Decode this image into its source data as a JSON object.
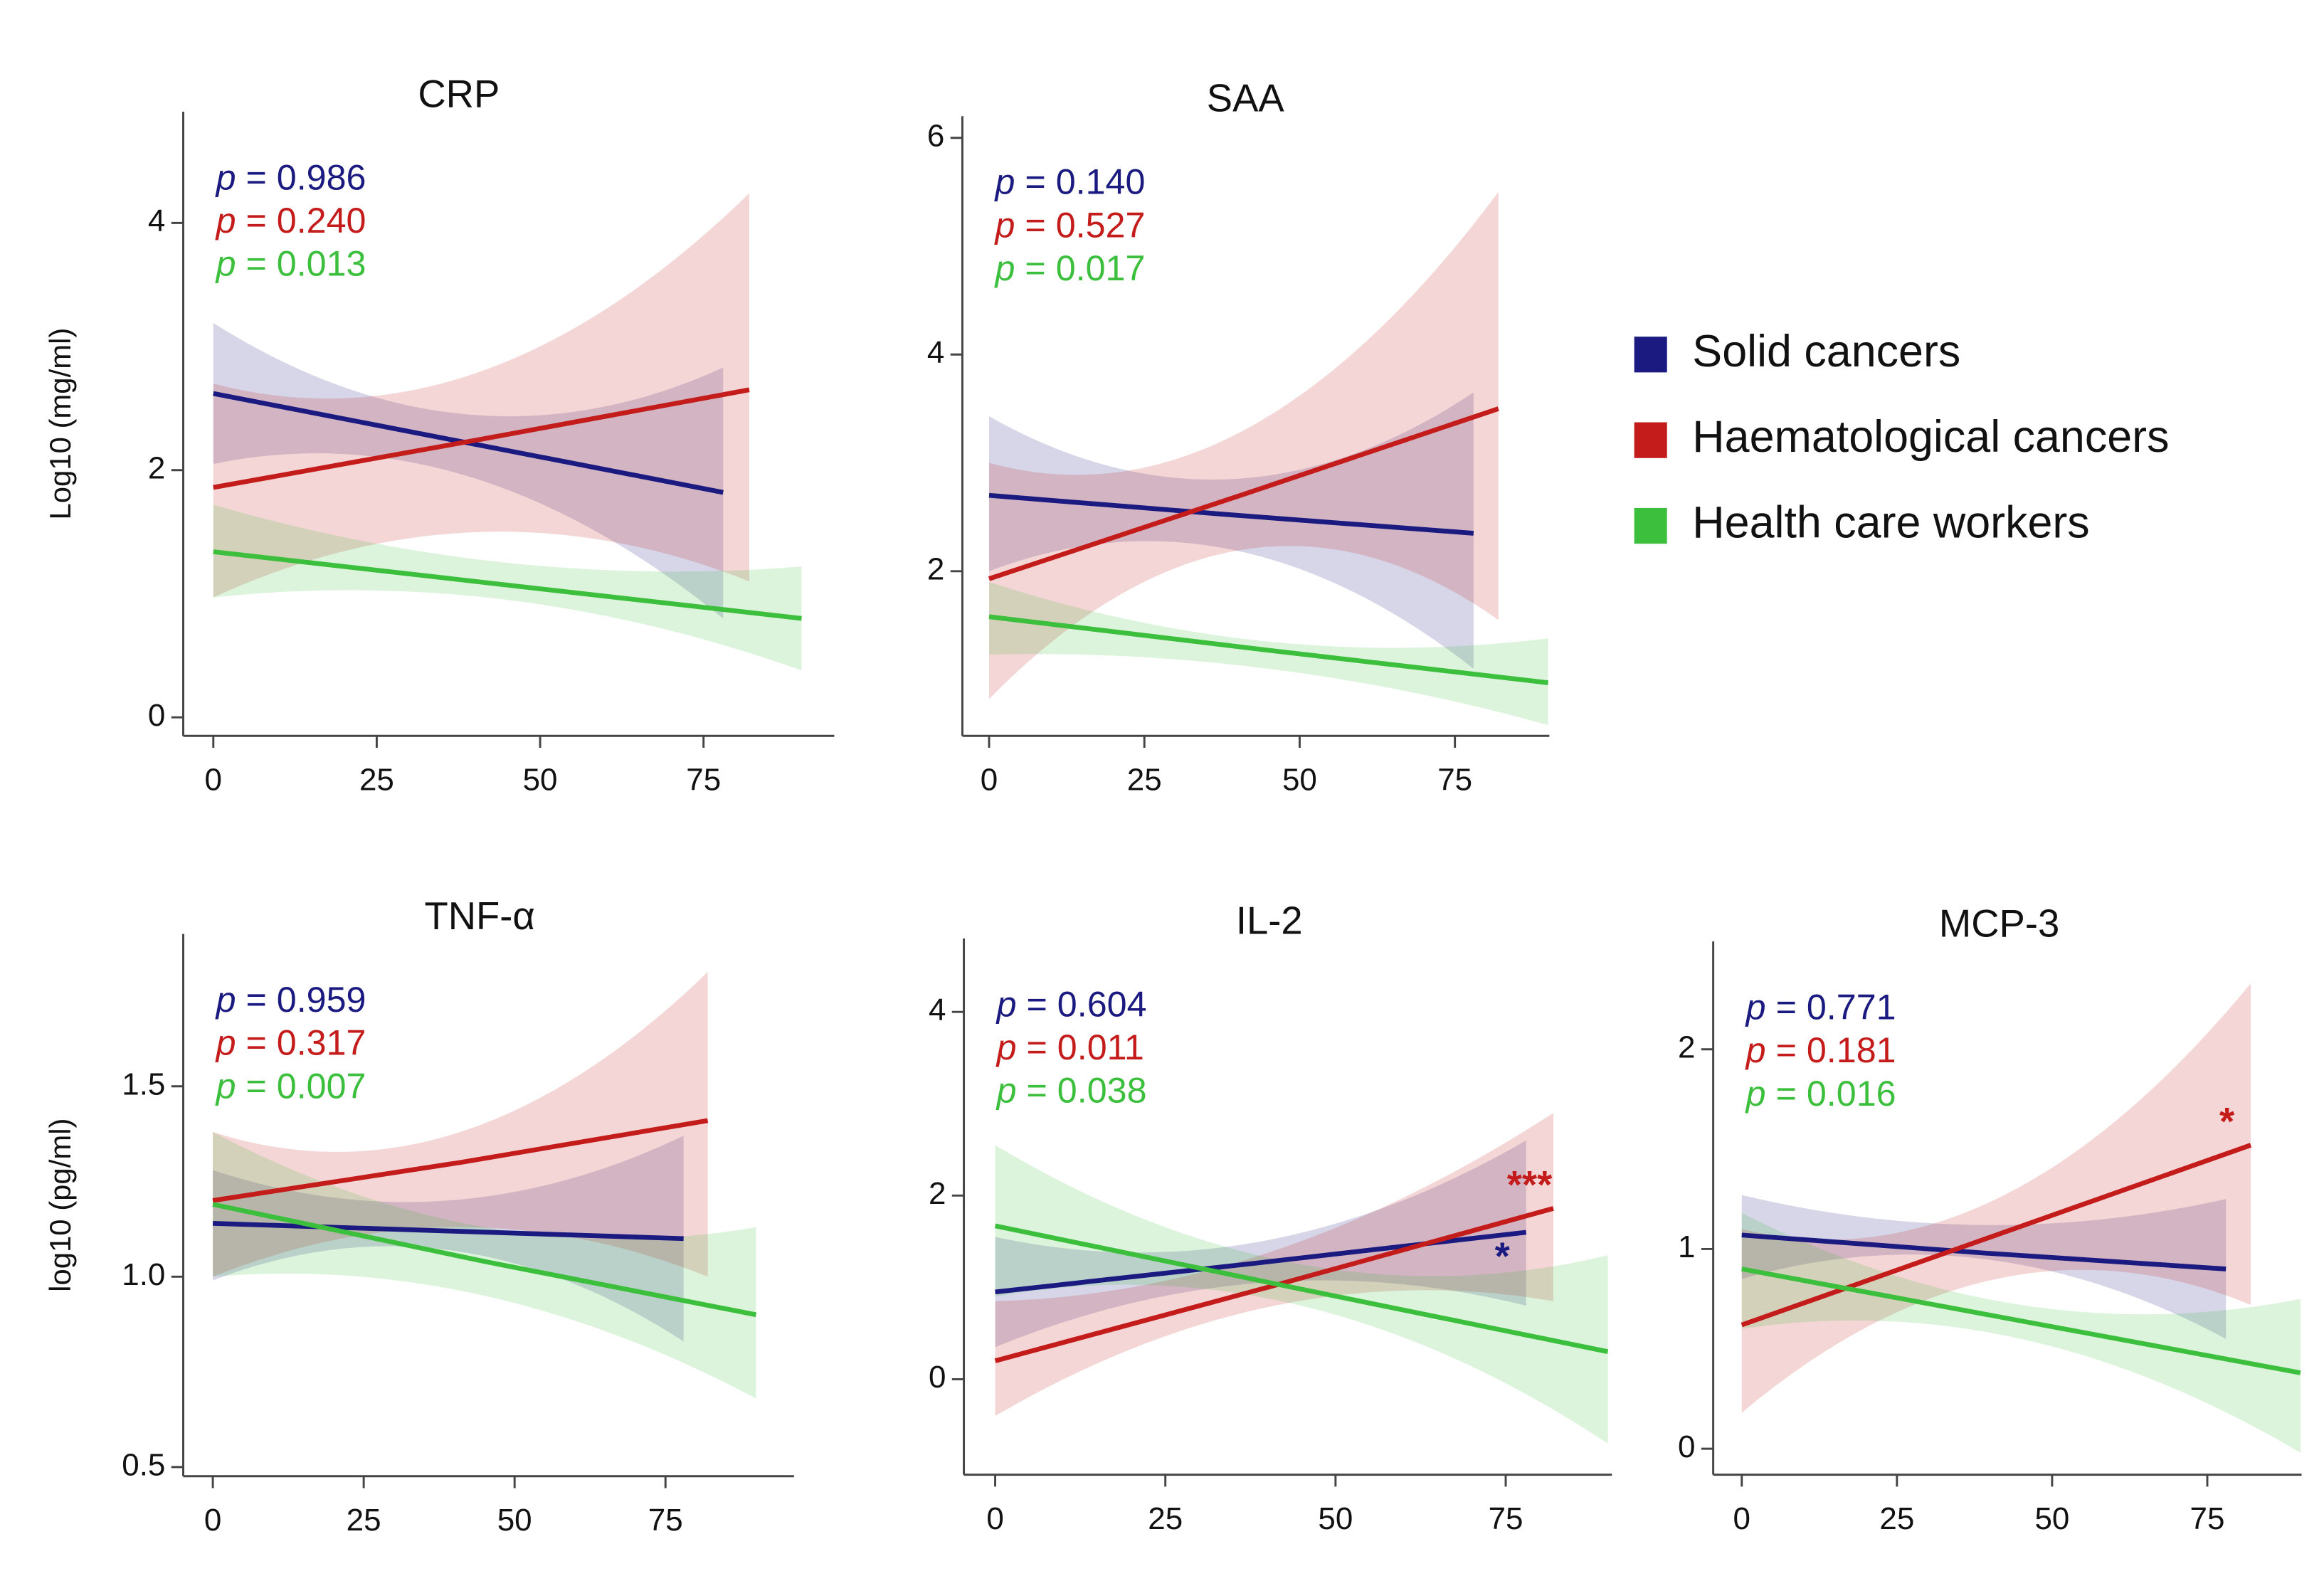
{
  "chart_data": [
    {
      "type": "line",
      "title": "CRP",
      "y_label": "Log10 (mg/ml)",
      "xlim": [
        -4.6,
        95
      ],
      "ylim": [
        -0.15,
        4.9
      ],
      "xticks": [
        0,
        25,
        50,
        75
      ],
      "yticks": [
        0,
        2,
        4
      ],
      "annotations": [
        {
          "text": "p = 0.986",
          "color": "#1a1a80"
        },
        {
          "text": "p = 0.240",
          "color": "#c41b1b"
        },
        {
          "text": "p = 0.013",
          "color": "#3cbf3c"
        }
      ],
      "series": [
        {
          "name": "Solid cancers",
          "color": "#1a1a80",
          "x": [
            0,
            39,
            78
          ],
          "values": [
            2.62,
            2.22,
            1.82
          ],
          "lower": [
            2.05,
            1.95,
            0.8
          ],
          "upper": [
            3.19,
            2.45,
            2.83
          ]
        },
        {
          "name": "Haematological cancers",
          "color": "#c41b1b",
          "x": [
            0,
            41,
            82
          ],
          "values": [
            1.86,
            2.25,
            2.65
          ],
          "lower": [
            0.97,
            1.5,
            1.1
          ],
          "upper": [
            2.7,
            2.8,
            4.24
          ]
        },
        {
          "name": "Health care workers",
          "color": "#3cbf3c",
          "x": [
            0,
            45,
            90
          ],
          "values": [
            1.34,
            1.07,
            0.8
          ],
          "lower": [
            0.97,
            0.95,
            0.38
          ],
          "upper": [
            1.72,
            1.25,
            1.22
          ]
        }
      ]
    },
    {
      "type": "line",
      "title": "SAA",
      "xlim": [
        -4.3,
        90.2
      ],
      "ylim": [
        0.48,
        6.2
      ],
      "xticks": [
        0,
        25,
        50,
        75
      ],
      "yticks": [
        2,
        4,
        6
      ],
      "annotations": [
        {
          "text": "p = 0.140",
          "color": "#1a1a80"
        },
        {
          "text": "p = 0.527",
          "color": "#c41b1b"
        },
        {
          "text": "p = 0.017",
          "color": "#3cbf3c"
        }
      ],
      "series": [
        {
          "color": "#1a1a80",
          "x": [
            0,
            39,
            78
          ],
          "values": [
            2.7,
            2.52,
            2.35
          ],
          "lower": [
            2.0,
            2.2,
            1.1
          ],
          "upper": [
            3.43,
            2.85,
            3.65
          ]
        },
        {
          "color": "#c41b1b",
          "x": [
            0,
            41,
            82
          ],
          "values": [
            1.93,
            2.71,
            3.5
          ],
          "lower": [
            0.82,
            2.2,
            1.55
          ],
          "upper": [
            3.0,
            3.3,
            5.5
          ]
        },
        {
          "color": "#3cbf3c",
          "x": [
            0,
            45,
            90
          ],
          "values": [
            1.58,
            1.27,
            0.97
          ],
          "lower": [
            1.23,
            1.1,
            0.58
          ],
          "upper": [
            1.9,
            1.35,
            1.38
          ]
        }
      ]
    },
    {
      "type": "line",
      "title": "TNF-α",
      "y_label": "log10  (pg/ml)",
      "xlim": [
        -4.9,
        96.3
      ],
      "ylim": [
        0.476,
        1.9
      ],
      "xticks": [
        0,
        25,
        50,
        75
      ],
      "yticks": [
        0.5,
        {
          "value": 1,
          "label": "1.0"
        },
        1.5
      ],
      "annotations": [
        {
          "text": "p = 0.959",
          "color": "#1a1a80"
        },
        {
          "text": "p = 0.317",
          "color": "#c41b1b"
        },
        {
          "text": "p = 0.007",
          "color": "#3cbf3c"
        }
      ],
      "series": [
        {
          "color": "#1a1a80",
          "x": [
            0,
            39,
            78
          ],
          "values": [
            1.14,
            1.12,
            1.1
          ],
          "lower": [
            0.99,
            1.07,
            0.83
          ],
          "upper": [
            1.28,
            1.2,
            1.37
          ]
        },
        {
          "color": "#c41b1b",
          "x": [
            0,
            41,
            82
          ],
          "values": [
            1.2,
            1.3,
            1.41
          ],
          "lower": [
            1.0,
            1.13,
            1.0
          ],
          "upper": [
            1.38,
            1.38,
            1.8
          ]
        },
        {
          "color": "#3cbf3c",
          "x": [
            0,
            45,
            90
          ],
          "values": [
            1.19,
            1.04,
            0.9
          ],
          "lower": [
            1.0,
            0.95,
            0.68
          ],
          "upper": [
            1.38,
            1.13,
            1.13
          ]
        }
      ]
    },
    {
      "type": "line",
      "title": "IL-2",
      "xlim": [
        -4.6,
        90.6
      ],
      "ylim": [
        -1.04,
        4.8
      ],
      "xticks": [
        0,
        25,
        50,
        75
      ],
      "yticks": [
        0,
        2,
        4
      ],
      "annotations": [
        {
          "text": "p = 0.604",
          "color": "#1a1a80"
        },
        {
          "text": "p = 0.011",
          "color": "#c41b1b"
        },
        {
          "text": "p = 0.038",
          "color": "#3cbf3c"
        }
      ],
      "series": [
        {
          "color": "#1a1a80",
          "x": [
            0,
            39,
            78
          ],
          "values": [
            0.95,
            1.27,
            1.6
          ],
          "lower": [
            0.35,
            1.05,
            0.8
          ],
          "upper": [
            1.55,
            1.5,
            2.6
          ],
          "end_label": "*"
        },
        {
          "color": "#c41b1b",
          "x": [
            0,
            41,
            82
          ],
          "values": [
            0.2,
            1.02,
            1.86
          ],
          "lower": [
            -0.4,
            0.8,
            0.85
          ],
          "upper": [
            0.85,
            1.4,
            2.9
          ],
          "end_label": "***"
        },
        {
          "color": "#3cbf3c",
          "x": [
            0,
            45,
            90
          ],
          "values": [
            1.67,
            0.98,
            0.3
          ],
          "lower": [
            0.9,
            0.8,
            -0.7
          ],
          "upper": [
            2.55,
            1.25,
            1.35
          ]
        }
      ]
    },
    {
      "type": "line",
      "title": "MCP-3",
      "xlim": [
        -4.6,
        90.2
      ],
      "ylim": [
        -0.13,
        2.54
      ],
      "xticks": [
        0,
        25,
        50,
        75
      ],
      "yticks": [
        0,
        1,
        2
      ],
      "annotations": [
        {
          "text": "p = 0.771",
          "color": "#1a1a80"
        },
        {
          "text": "p = 0.181",
          "color": "#c41b1b"
        },
        {
          "text": "p = 0.016",
          "color": "#3cbf3c"
        }
      ],
      "series": [
        {
          "color": "#1a1a80",
          "x": [
            0,
            39,
            78
          ],
          "values": [
            1.07,
            0.98,
            0.9
          ],
          "lower": [
            0.85,
            0.95,
            0.55
          ],
          "upper": [
            1.27,
            1.12,
            1.25
          ]
        },
        {
          "color": "#c41b1b",
          "x": [
            0,
            41,
            82
          ],
          "values": [
            0.62,
            1.07,
            1.52
          ],
          "lower": [
            0.18,
            0.85,
            0.72
          ],
          "upper": [
            1.1,
            1.25,
            2.33
          ],
          "end_label": "*"
        },
        {
          "color": "#3cbf3c",
          "x": [
            0,
            45,
            90
          ],
          "values": [
            0.9,
            0.64,
            0.38
          ],
          "lower": [
            0.6,
            0.55,
            -0.02
          ],
          "upper": [
            1.18,
            0.72,
            0.75
          ]
        }
      ]
    }
  ]
}
